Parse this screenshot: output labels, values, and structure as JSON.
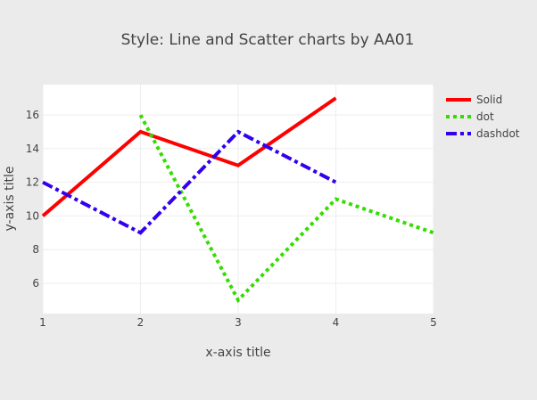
{
  "chart_data": {
    "type": "line",
    "title": "Style: Line and Scatter charts by AA01",
    "xlabel": "x-axis title",
    "ylabel": "y-axis title",
    "xlim": [
      1,
      5
    ],
    "ylim": [
      4.2,
      17.8
    ],
    "xticks": [
      1,
      2,
      3,
      4,
      5
    ],
    "yticks": [
      6,
      8,
      10,
      12,
      14,
      16
    ],
    "grid": true,
    "legend_position": "top-right",
    "series": [
      {
        "name": "Solid",
        "dash": "solid",
        "color": "#ff0000",
        "x": [
          1,
          2,
          3,
          4
        ],
        "y": [
          10,
          15,
          13,
          17
        ]
      },
      {
        "name": "dot",
        "dash": "dot",
        "color": "#33dd00",
        "x": [
          2,
          3,
          4,
          5
        ],
        "y": [
          16,
          5,
          11,
          9
        ]
      },
      {
        "name": "dashdot",
        "dash": "dashdot",
        "color": "#3300ee",
        "x": [
          1,
          2,
          3,
          4
        ],
        "y": [
          12,
          9,
          15,
          12
        ]
      }
    ]
  },
  "colors": {
    "paper_bg": "#ebebeb",
    "plot_bg": "#ffffff",
    "grid": "#eeeeee",
    "text": "#444444"
  }
}
